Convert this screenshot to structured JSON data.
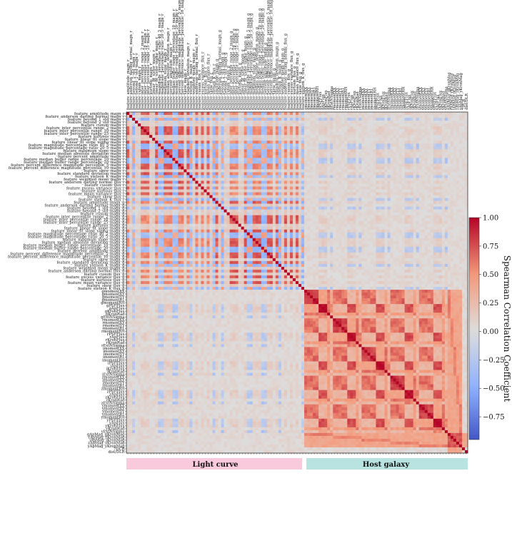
{
  "chart_data": {
    "type": "heatmap",
    "colorbar": {
      "label": "Spearman Correlation Coefficient",
      "range": [
        -0.95,
        1.0
      ],
      "ticks": [
        "1.00",
        "0.75",
        "0.50",
        "0.25",
        "0.00",
        "−0.25",
        "−0.50",
        "−0.75"
      ],
      "tick_values": [
        1.0,
        0.75,
        0.5,
        0.25,
        0.0,
        -0.25,
        -0.5,
        -0.75
      ],
      "colormap": "coolwarm"
    },
    "feature_labels": [
      "feature_amplitude_magn_r",
      "feature_anderson_darling_normal_magn_r",
      "feature_beyond_1_std_magn_r",
      "feature_beyond_2_std_magn_r",
      "feature_cusum_magn_r",
      "feature_inter_percentile_range_2_magn_r",
      "feature_inter_percentile_range_10_magn_r",
      "feature_inter_percentile_range_25_magn_r",
      "feature_kurtosis_magn_r",
      "feature_linear_fit_slope_magn_r",
      "feature_linear_fit_slope_sigma_magn_r",
      "feature_magnitude_percentage_ratio_40_5_magn_r",
      "feature_magnitude_percentage_ratio_20_5_magn_r",
      "feature_maximum_slope_magn_r",
      "feature_median_absolute_deviation_magn_r",
      "feature_percent_amplitude_magn_r",
      "feature_median_buffer_range_percentage_10_magn_r",
      "feature_median_buffer_range_percentage_20_magn_r",
      "feature_percent_difference_magnitude_percentile_5_magn_r",
      "feature_percent_difference_magnitude_percentile_10_magn_r",
      "feature_skew_magn_r",
      "feature_standard_deviation_magn_r",
      "feature_stetson_K_magn_r",
      "feature_weighted_mean_magn_r",
      "feature_anderson_darling_normal_flux_r",
      "feature_cusum_flux_r",
      "feature_excess_variance_flux_r",
      "feature_kurtosis_flux_r",
      "feature_mean_variance_flux_r",
      "feature_skew_flux_r",
      "feature_stetson_K_flux_r",
      "feature_amplitude_magn_g",
      "feature_anderson_darling_normal_magn_g",
      "feature_beyond_1_std_magn_g",
      "feature_beyond_2_std_magn_g",
      "feature_cusum_magn_g",
      "feature_inter_percentile_range_2_magn_g",
      "feature_inter_percentile_range_10_magn_g",
      "feature_inter_percentile_range_25_magn_g",
      "feature_kurtosis_magn_g",
      "feature_linear_fit_slope_magn_g",
      "feature_linear_fit_slope_sigma_magn_g",
      "feature_magnitude_percentage_ratio_40_5_magn_g",
      "feature_magnitude_percentage_ratio_20_5_magn_g",
      "feature_maximum_slope_magn_g",
      "feature_median_absolute_deviation_magn_g",
      "feature_median_buffer_range_percentage_10_magn_g",
      "feature_median_buffer_range_percentage_20_magn_g",
      "feature_percent_amplitude_magn_g",
      "feature_percent_difference_magnitude_percentile_5_magn_g",
      "feature_percent_difference_magnitude_percentile_10_magn_g",
      "feature_skew_magn_g",
      "feature_standard_deviation_magn_g",
      "feature_stetson_K_magn_g",
      "feature_weighted_mean_magn_g",
      "feature_anderson_darling_normal_flux_g",
      "feature_cusum_flux_g",
      "feature_excess_variance_flux_g",
      "feature_kurtosis_flux_g",
      "feature_mean_variance_flux_g",
      "feature_skew_flux_g",
      "feature_stetson_K_flux_g",
      "gmomentXX",
      "gmomentXY",
      "gmomentYY",
      "gmomentR1",
      "gmomentRH",
      "gPSFFlux",
      "gApFlux",
      "gKronFlux",
      "gKronRad",
      "gExtNSigma",
      "rmomentXX",
      "rmomentXY",
      "rmomentYY",
      "rmomentR1",
      "rmomentRH",
      "rPSFFlux",
      "rApFlux",
      "rKronFlux",
      "rKronRad",
      "rExtNSigma",
      "imomentXX",
      "imomentXY",
      "imomentYY",
      "imomentR1",
      "imomentRH",
      "iPSFFlux",
      "iApFlux",
      "iKronFlux",
      "iKronRad",
      "iExtNSigma",
      "zmomentXX",
      "zmomentXY",
      "zmomentYY",
      "zmomentR1",
      "zmomentRH",
      "zPSFFlux",
      "zApFlux",
      "zKronFlux",
      "zKronRad",
      "zExtNSigma",
      "ymomentXX",
      "ymomentXY",
      "ymomentYY",
      "ymomentR1",
      "ymomentRH",
      "yPSFFlux",
      "yApFlux",
      "yKronFlux",
      "yKronRad",
      "yExtNSigma",
      "gApMag_gKronMag",
      "rApMag_rKronMag",
      "iApMag_iKronMag",
      "zApMag_zKronMag",
      "yApMag_yKronMag",
      "7DCR",
      "dist/DLR"
    ],
    "groups": [
      {
        "label": "Light curve",
        "start_index": 0,
        "end_index": 61,
        "color": "#f9c9dc"
      },
      {
        "label": "Host galaxy",
        "start_index": 62,
        "end_index": 118,
        "color": "#b9e3e1"
      }
    ],
    "diagonal_value": 1.0,
    "note_values": "Symmetric matrix; light-curve block shows strong positive (~0.6-0.9) and negative (~-0.4 to -0.6) correlations among amplitude-like features; host-galaxy block shows strong positive (~0.6-0.95) correlations within each band's moment/flux groups; cross-block correlations are near 0 to ~0.25."
  }
}
